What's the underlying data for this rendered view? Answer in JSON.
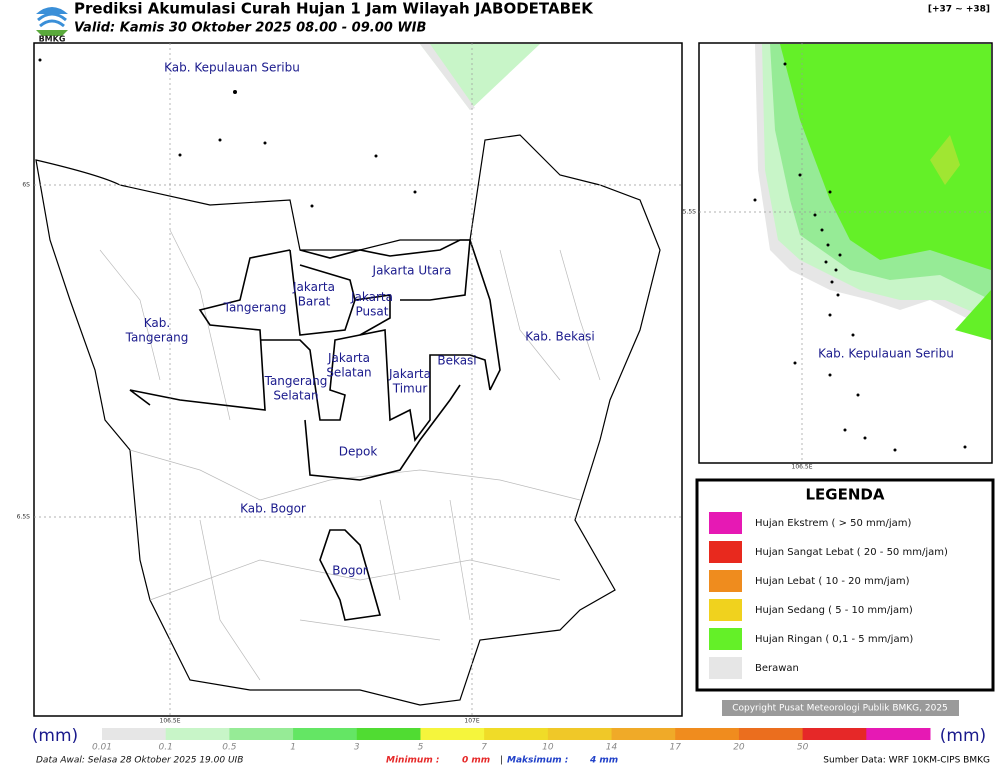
{
  "header": {
    "logo": "BMKG",
    "title": "Prediksi Akumulasi Curah Hujan 1 Jam Wilayah JABODETABEK",
    "valid": "Valid: Kamis 30 Oktober 2025 08.00 - 09.00 WIB",
    "range": "[+37 ~ +38]"
  },
  "map": {
    "labels": [
      "Kab. Kepulauan Seribu",
      "Jakarta Utara",
      "Jakarta\nBarat",
      "Jakarta\nPusat",
      "Tangerang",
      "Kab.\nTangerang",
      "Tangerang\nSelatan",
      "Jakarta\nSelatan",
      "Jakarta\nTimur",
      "Bekasi",
      "Kab. Bekasi",
      "Depok",
      "Kab. Bogor",
      "Bogor"
    ],
    "lat_ticks": [
      "6S",
      "6.5S"
    ],
    "lon_ticks": [
      "106.5E",
      "107E"
    ]
  },
  "inset": {
    "label": "Kab. Kepulauan Seribu",
    "lat_tick": "5.5S",
    "lon_tick": "106.5E"
  },
  "legend": {
    "title": "LEGENDA",
    "items": [
      {
        "label": "Hujan Ekstrem ( > 50 mm/jam)",
        "color": "#e619b4"
      },
      {
        "label": "Hujan Sangat Lebat ( 20 - 50 mm/jam)",
        "color": "#e8291e"
      },
      {
        "label": "Hujan Lebat ( 10 - 20 mm/jam)",
        "color": "#ef8c1e"
      },
      {
        "label": "Hujan Sedang ( 5 - 10 mm/jam)",
        "color": "#f0d21e"
      },
      {
        "label": "Hujan Ringan ( 0,1 - 5 mm/jam)",
        "color": "#64f028"
      },
      {
        "label": "Berawan",
        "color": "#e6e6e6"
      }
    ]
  },
  "copyright": "Copyright Pusat Meteorologi Publik BMKG, 2025",
  "colorbar": {
    "unit": "(mm)",
    "ticks": [
      "0.01",
      "0.1",
      "0.5",
      "1",
      "3",
      "5",
      "7",
      "10",
      "14",
      "17",
      "20",
      "50"
    ],
    "colors": [
      "#e6e6e6",
      "#c8f5c8",
      "#96eb96",
      "#64e664",
      "#50dc32",
      "#f5f53c",
      "#f0dc28",
      "#f0c828",
      "#f0aa28",
      "#f08c1e",
      "#eb6e1e",
      "#e62828",
      "#e619b4"
    ]
  },
  "footer": {
    "data_awal": "Data Awal: Selasa 28 Oktober 2025 19.00 UIB",
    "min_label": "Minimum :",
    "min_value": "0 mm",
    "sep": "|",
    "max_label": "Maksimum :",
    "max_value": "4 mm",
    "source": "Sumber Data: WRF 10KM-CIPS BMKG"
  }
}
